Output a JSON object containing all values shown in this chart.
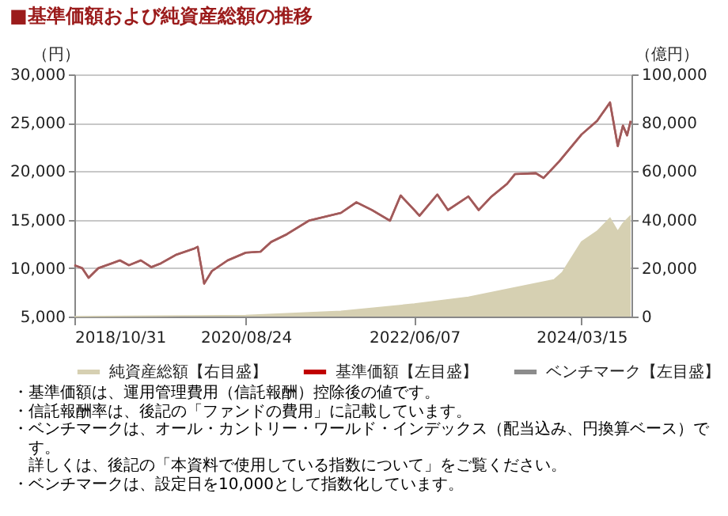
{
  "chart_data": {
    "type": "line",
    "title": "■基準価額および純資産総額の推移",
    "ylabel": "（円）",
    "y2label": "（億円）",
    "x": [
      "2018-10-31",
      "2018-11-30",
      "2018-12-25",
      "2019-02-01",
      "2019-03-25",
      "2019-04-25",
      "2019-05-30",
      "2019-07-15",
      "2019-08-25",
      "2019-10-01",
      "2019-11-30",
      "2020-02-05",
      "2020-02-20",
      "2020-03-16",
      "2020-04-15",
      "2020-06-15",
      "2020-08-24",
      "2020-10-20",
      "2020-11-30",
      "2021-01-30",
      "2021-04-25",
      "2021-08-27",
      "2021-10-26",
      "2021-12-25",
      "2022-03-05",
      "2022-04-15",
      "2022-06-07",
      "2022-06-27",
      "2022-09-04",
      "2022-10-15",
      "2023-01-02",
      "2023-02-11",
      "2023-04-02",
      "2023-06-01",
      "2023-07-01",
      "2023-09-20",
      "2023-10-20",
      "2023-12-19",
      "2024-03-15",
      "2024-05-14",
      "2024-07-03",
      "2024-08-02",
      "2024-08-22",
      "2024-09-07",
      "2024-09-21"
    ],
    "xlim": [
      "2018-10-31",
      "2024-09-24"
    ],
    "xticks": [
      {
        "value": "2018-10-31",
        "label": "2018/10/31"
      },
      {
        "value": "2020-08-24",
        "label": "2020/08/24"
      },
      {
        "value": "2022-06-07",
        "label": "2022/06/07"
      },
      {
        "value": "2024-03-15",
        "label": "2024/03/15"
      }
    ],
    "ylim": [
      5000,
      30000
    ],
    "yticks": [
      {
        "value": 5000,
        "label": "5,000"
      },
      {
        "value": 10000,
        "label": "10,000"
      },
      {
        "value": 15000,
        "label": "15,000"
      },
      {
        "value": 20000,
        "label": "20,000"
      },
      {
        "value": 25000,
        "label": "25,000"
      },
      {
        "value": 30000,
        "label": "30,000"
      }
    ],
    "y2lim": [
      0,
      100000
    ],
    "y2ticks": [
      0,
      {
        "value": 20000,
        "label": "20,000"
      },
      {
        "value": 40000,
        "label": "40,000"
      },
      {
        "value": 60000,
        "label": "60,000"
      },
      {
        "value": 80000,
        "label": "80,000"
      },
      {
        "value": 100000,
        "label": "100,000"
      }
    ],
    "series": [
      {
        "name": "純資産総額【右目盛】",
        "type": "area",
        "axis": "y2",
        "color": "#d6d0b2",
        "x": [
          "2018-10-31",
          "2019-10-01",
          "2020-08-24",
          "2021-08-27",
          "2022-06-07",
          "2023-01-02",
          "2023-06-01",
          "2023-11-29",
          "2024-01-01",
          "2024-03-15",
          "2024-05-14",
          "2024-07-03",
          "2024-08-02",
          "2024-08-22",
          "2024-09-21"
        ],
        "values": [
          0,
          200,
          500,
          2200,
          5200,
          8000,
          11300,
          15200,
          18300,
          30900,
          35200,
          40700,
          35200,
          38500,
          41700
        ]
      },
      {
        "name": "基準価額【左目盛】",
        "color": "#c00000",
        "values": [
          10300,
          10000,
          9000,
          10000,
          10500,
          10800,
          10300,
          10800,
          10100,
          10500,
          11400,
          12000,
          12200,
          8400,
          9700,
          10800,
          11600,
          11700,
          12700,
          13500,
          14900,
          15700,
          16800,
          16000,
          14900,
          17500,
          16000,
          15400,
          17600,
          16000,
          17400,
          16000,
          17400,
          18700,
          19700,
          19800,
          19300,
          21000,
          23800,
          25200,
          27100,
          22600,
          24700,
          23700,
          25200
        ]
      },
      {
        "name": "ベンチマーク【左目盛】",
        "color": "#8c8c8c",
        "values": [
          10300,
          10000,
          9000,
          10000,
          10500,
          10800,
          10300,
          10800,
          10100,
          10500,
          11400,
          12000,
          12200,
          8400,
          9700,
          10800,
          11600,
          11700,
          12700,
          13500,
          14900,
          15700,
          16800,
          16000,
          14900,
          17500,
          16000,
          15400,
          17600,
          16000,
          17400,
          16000,
          17400,
          18700,
          19700,
          19800,
          19300,
          21000,
          23800,
          25200,
          27100,
          22600,
          24700,
          23700,
          25200
        ]
      }
    ],
    "grid": "y",
    "legend": "bottom",
    "annotations": [
      "・基準価額は、運用管理費用（信託報酬）控除後の値です。",
      "・信託報酬率は、後記の「ファンドの費用」に記載しています。",
      "・ベンチマークは、オール・カントリー・ワールド・インデックス（配当込み、円換算ベース）です。",
      "　詳しくは、後記の「本資料で使用している指数について」をご覧ください。",
      "・ベンチマークは、設定日を10,000として指数化しています。"
    ]
  }
}
